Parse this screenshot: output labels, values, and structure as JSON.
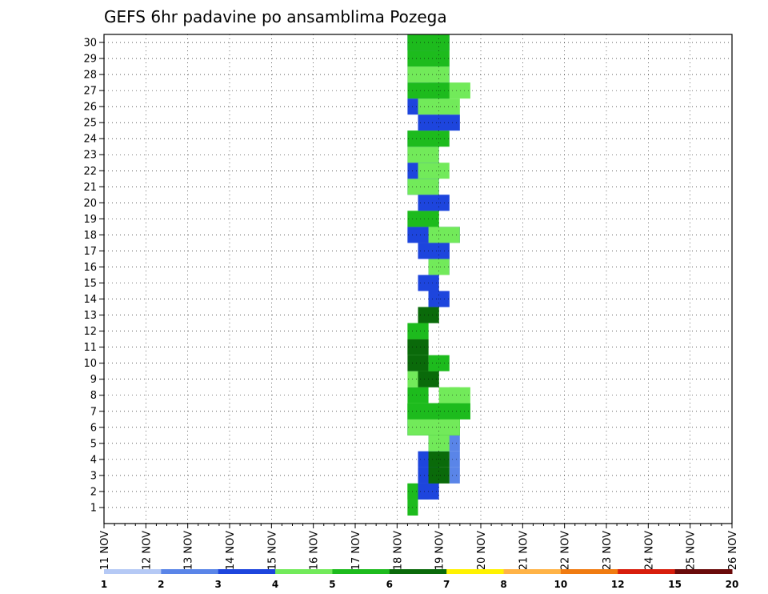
{
  "chart_data": {
    "type": "heatmap",
    "title": "GEFS 6hr padavine po ansamblima Pozega",
    "xlabel": "",
    "ylabel": "",
    "x_tick_labels": [
      "11 NOV",
      "12 NOV",
      "13 NOV",
      "14 NOV",
      "15 NOV",
      "16 NOV",
      "17 NOV",
      "18 NOV",
      "19 NOV",
      "20 NOV",
      "21 NOV",
      "22 NOV",
      "23 NOV",
      "24 NOV",
      "25 NOV",
      "26 NOV"
    ],
    "x_range_days": [
      11,
      26
    ],
    "y_tick_labels": [
      "1",
      "2",
      "3",
      "4",
      "5",
      "6",
      "7",
      "8",
      "9",
      "10",
      "11",
      "12",
      "13",
      "14",
      "15",
      "16",
      "17",
      "18",
      "19",
      "20",
      "21",
      "22",
      "23",
      "24",
      "25",
      "26",
      "27",
      "28",
      "29",
      "30"
    ],
    "y_range_members": [
      0,
      30
    ],
    "time_step_hours": 6,
    "grid": true,
    "colorbar": {
      "labels": [
        "1",
        "2",
        "3",
        "4",
        "5",
        "6",
        "7",
        "8",
        "10",
        "12",
        "15",
        "20"
      ],
      "colors": [
        "#b5c9f5",
        "#5a85e8",
        "#1d45dd",
        "#72ea5a",
        "#1dbb1d",
        "#0a6a0a",
        "#fff200",
        "#ffb347",
        "#f07b11",
        "#d81d0c",
        "#6a0a0a"
      ]
    },
    "legend_position": "bottom",
    "cells": [
      [
        29,
        1,
        1,
        3
      ],
      [
        29,
        1,
        1,
        4
      ],
      [
        29,
        1,
        2,
        3
      ],
      [
        29,
        1,
        2,
        4
      ],
      [
        30,
        1,
        2,
        3
      ],
      [
        30,
        1,
        2,
        4
      ],
      [
        30,
        1,
        3,
        2
      ],
      [
        30,
        1,
        4,
        1
      ],
      [
        31,
        1,
        4,
        3
      ],
      [
        31,
        1,
        5,
        3
      ],
      [
        31,
        1,
        5,
        4
      ],
      [
        31,
        1,
        6,
        1
      ],
      [
        32,
        1,
        6,
        2
      ],
      [
        32,
        1,
        6,
        3
      ],
      [
        32,
        1,
        7,
        4
      ],
      [
        33,
        1,
        3,
        1
      ],
      [
        33,
        1,
        4,
        1
      ],
      [
        33,
        1,
        5,
        1
      ],
      [
        33,
        1,
        6,
        1
      ],
      [
        30,
        1,
        6,
        3
      ],
      [
        29,
        1,
        6,
        4
      ],
      [
        29,
        1,
        7,
        4
      ],
      [
        29,
        2,
        2,
        3
      ],
      [
        29,
        2,
        2,
        4
      ],
      [
        30,
        2,
        2,
        2
      ],
      [
        30,
        2,
        3,
        1
      ],
      [
        30,
        2,
        3,
        2
      ],
      [
        30,
        2,
        4,
        1
      ],
      [
        30,
        2,
        4,
        2
      ],
      [
        31,
        2,
        3,
        5
      ],
      [
        31,
        2,
        4,
        5
      ],
      [
        31,
        2,
        5,
        1
      ],
      [
        31,
        2,
        5,
        2
      ],
      [
        31,
        2,
        5,
        3
      ],
      [
        32,
        2,
        6,
        4
      ],
      [
        31,
        2,
        6,
        5
      ],
      [
        32,
        2,
        7,
        5
      ],
      [
        33,
        2,
        7,
        4
      ],
      [
        32,
        2,
        8,
        3
      ],
      [
        33,
        2,
        8,
        3
      ],
      [
        29,
        2,
        6,
        1
      ],
      [
        29,
        2,
        6,
        2
      ],
      [
        30,
        2,
        7,
        1
      ],
      [
        30,
        2,
        7,
        2
      ],
      [
        29,
        2,
        8,
        4
      ],
      [
        29,
        2,
        9,
        3
      ],
      [
        30,
        2,
        9,
        4
      ],
      [
        30,
        2,
        9,
        5
      ],
      [
        29,
        2,
        10,
        5
      ],
      [
        31,
        2,
        10,
        4
      ],
      [
        29,
        2,
        11,
        4
      ],
      [
        29,
        2,
        11,
        5
      ],
      [
        29,
        2,
        12,
        3
      ],
      [
        29,
        2,
        12,
        4
      ],
      [
        30,
        2,
        13,
        4
      ],
      [
        30,
        2,
        13,
        5
      ],
      [
        31,
        2,
        14,
        1
      ],
      [
        31,
        2,
        14,
        2
      ],
      [
        30,
        2,
        15,
        1
      ],
      [
        30,
        2,
        15,
        2
      ],
      [
        31,
        2,
        16,
        2
      ],
      [
        31,
        2,
        16,
        3
      ],
      [
        31,
        2,
        17,
        1
      ],
      [
        31,
        2,
        17,
        2
      ],
      [
        30,
        3,
        17,
        2
      ],
      [
        29,
        3,
        18,
        1
      ],
      [
        29,
        3,
        18,
        2
      ],
      [
        31,
        3,
        18,
        2
      ],
      [
        31,
        3,
        18,
        3
      ],
      [
        29,
        3,
        19,
        3
      ],
      [
        29,
        3,
        19,
        4
      ],
      [
        30,
        3,
        20,
        1
      ],
      [
        30,
        3,
        20,
        2
      ],
      [
        29,
        3,
        21,
        1
      ],
      [
        29,
        3,
        21,
        2
      ],
      [
        29,
        3,
        21,
        3
      ],
      [
        29,
        3,
        22,
        2
      ],
      [
        30,
        3,
        22,
        3
      ],
      [
        29,
        3,
        23,
        2
      ],
      [
        29,
        3,
        23,
        3
      ],
      [
        29,
        3,
        24,
        2
      ],
      [
        29,
        3,
        24,
        3
      ],
      [
        29,
        4,
        24,
        4
      ],
      [
        30,
        4,
        25,
        2
      ],
      [
        29,
        4,
        26,
        2
      ],
      [
        30,
        4,
        26,
        3
      ],
      [
        31,
        4,
        27,
        3
      ],
      [
        29,
        4,
        27,
        4
      ],
      [
        29,
        4,
        28,
        2
      ],
      [
        29,
        4,
        28,
        3
      ],
      [
        29,
        4,
        29,
        3
      ],
      [
        29,
        4,
        29,
        4
      ],
      [
        29,
        4,
        30,
        1
      ],
      [
        29,
        4,
        30,
        2
      ],
      [
        29,
        4,
        30,
        3
      ],
      [
        29,
        4,
        30,
        4
      ],
      [
        29,
        5,
        6,
        4
      ],
      [
        29,
        5,
        6,
        3
      ],
      [
        29,
        5,
        7,
        3
      ],
      [
        29,
        5,
        7,
        4
      ],
      [
        29,
        6,
        7,
        3
      ],
      [
        29,
        6,
        7,
        4
      ]
    ]
  }
}
